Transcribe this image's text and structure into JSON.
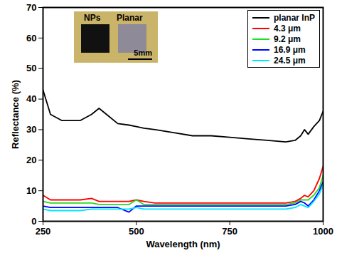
{
  "chart_data": {
    "type": "line",
    "x_label": "Wavelength (nm)",
    "y_label": "Reflectance (%)",
    "xlim": [
      250,
      1000
    ],
    "xticks": [
      250,
      500,
      750,
      1000
    ],
    "ylim": [
      0,
      70
    ],
    "yticks": [
      0,
      10,
      20,
      30,
      40,
      50,
      60,
      70
    ],
    "legend": "top-right",
    "annotations": [
      "NPs",
      "Planar",
      "5mm"
    ],
    "x": [
      250,
      270,
      300,
      350,
      380,
      400,
      420,
      450,
      480,
      500,
      520,
      550,
      600,
      650,
      700,
      750,
      800,
      850,
      900,
      925,
      940,
      950,
      960,
      975,
      990,
      1000
    ],
    "series": [
      {
        "name": "planar InP",
        "color": "#000000",
        "values": [
          43,
          35,
          33,
          33,
          35,
          37,
          35,
          32,
          31.5,
          31,
          30.5,
          30,
          29,
          28,
          28,
          27.5,
          27,
          26.5,
          26,
          26.5,
          28,
          30,
          28.5,
          31,
          33,
          36
        ]
      },
      {
        "name": "4.3 μm",
        "color": "#ff0000",
        "values": [
          8.5,
          7,
          7,
          7,
          7.5,
          6.5,
          6.5,
          6.5,
          6.5,
          7,
          6.5,
          6,
          6,
          6,
          6,
          6,
          6,
          6,
          6,
          6.5,
          7.5,
          8.5,
          8,
          10,
          14,
          18
        ]
      },
      {
        "name": "9.2 μm",
        "color": "#22dd22",
        "values": [
          6.5,
          6,
          6,
          6,
          6,
          5.5,
          5.5,
          5.5,
          5.5,
          7,
          5.5,
          5.5,
          5.5,
          5.5,
          5.5,
          5.5,
          5.5,
          5.5,
          5.5,
          6,
          7,
          7,
          7,
          8.5,
          11,
          15
        ]
      },
      {
        "name": "16.9 μm",
        "color": "#0000ff",
        "values": [
          5,
          4.5,
          4.5,
          4.5,
          4.5,
          4.5,
          4.5,
          4.5,
          3,
          5,
          5,
          5,
          5,
          5,
          5,
          5,
          5,
          5,
          5,
          5.5,
          6.5,
          6,
          5,
          7,
          10,
          13
        ]
      },
      {
        "name": "24.5 μm",
        "color": "#00e5ff",
        "values": [
          4,
          3.5,
          3.5,
          3.5,
          4,
          4,
          4,
          4,
          4,
          4.5,
          4,
          4,
          4,
          4,
          4,
          4,
          4,
          4,
          4,
          4.5,
          5.5,
          5,
          4.5,
          6.5,
          9,
          12
        ]
      }
    ]
  }
}
